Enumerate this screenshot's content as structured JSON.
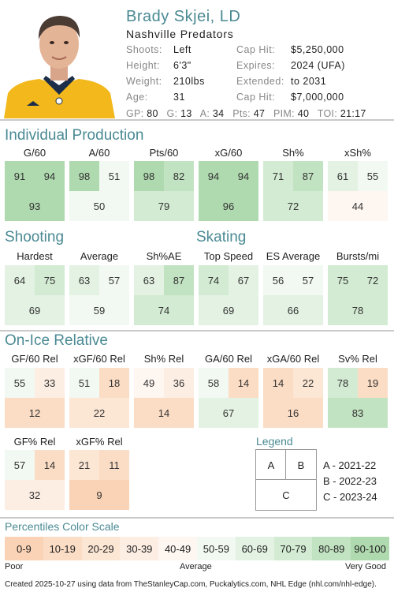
{
  "player": {
    "name": "Brady Skjei, LD",
    "team": "Nashville Predators",
    "shoots_label": "Shoots:",
    "shoots": "Left",
    "height_label": "Height:",
    "height": "6'3\"",
    "weight_label": "Weight:",
    "weight": "210lbs",
    "age_label": "Age:",
    "age": "31",
    "caphit_label": "Cap Hit:",
    "caphit": "$5,250,000",
    "expires_label": "Expires:",
    "expires": "2024 (UFA)",
    "extended_label": "Extended:",
    "extended": "to 2031",
    "caphit2_label": "Cap Hit:",
    "caphit2": "$7,000,000"
  },
  "statline": [
    {
      "k": "GP:",
      "v": "80"
    },
    {
      "k": "G:",
      "v": "13"
    },
    {
      "k": "A:",
      "v": "34"
    },
    {
      "k": "Pts:",
      "v": "47"
    },
    {
      "k": "PIM:",
      "v": "40"
    },
    {
      "k": "TOI:",
      "v": "21:17"
    }
  ],
  "sections": {
    "production": "Individual Production",
    "shooting": "Shooting",
    "skating": "Skating",
    "onice": "On-Ice Relative"
  },
  "metrics": {
    "production": [
      {
        "label": "G/60",
        "a": 91,
        "b": 94,
        "c": 93
      },
      {
        "label": "A/60",
        "a": 98,
        "b": 51,
        "c": 50
      },
      {
        "label": "Pts/60",
        "a": 98,
        "b": 82,
        "c": 79
      },
      {
        "label": "xG/60",
        "a": 94,
        "b": 94,
        "c": 96
      },
      {
        "label": "Sh%",
        "a": 71,
        "b": 87,
        "c": 72
      },
      {
        "label": "xSh%",
        "a": 61,
        "b": 55,
        "c": 44
      }
    ],
    "shooting": [
      {
        "label": "Hardest",
        "a": 64,
        "b": 75,
        "c": 69
      },
      {
        "label": "Average",
        "a": 63,
        "b": 57,
        "c": 59
      },
      {
        "label": "Sh%AE",
        "a": 63,
        "b": 87,
        "c": 74
      }
    ],
    "skating": [
      {
        "label": "Top Speed",
        "a": 74,
        "b": 67,
        "c": 69
      },
      {
        "label": "ES Average",
        "a": 56,
        "b": 57,
        "c": 66
      },
      {
        "label": "Bursts/mi",
        "a": 75,
        "b": 72,
        "c": 78
      }
    ],
    "onice1": [
      {
        "label": "GF/60 Rel",
        "a": 55,
        "b": 33,
        "c": 12
      },
      {
        "label": "xGF/60 Rel",
        "a": 51,
        "b": 18,
        "c": 22
      },
      {
        "label": "Sh% Rel",
        "a": 49,
        "b": 36,
        "c": 14
      },
      {
        "label": "GA/60 Rel",
        "a": 58,
        "b": 14,
        "c": 67
      },
      {
        "label": "xGA/60 Rel",
        "a": 14,
        "b": 22,
        "c": 16
      },
      {
        "label": "Sv% Rel",
        "a": 78,
        "b": 19,
        "c": 83
      }
    ],
    "onice2": [
      {
        "label": "GF% Rel",
        "a": 57,
        "b": 14,
        "c": 32
      },
      {
        "label": "xGF% Rel",
        "a": 21,
        "b": 11,
        "c": 9
      }
    ]
  },
  "legend": {
    "title": "Legend",
    "a": "A",
    "b": "B",
    "c": "C",
    "a_text": "A - 2021-22",
    "b_text": "B - 2022-23",
    "c_text": "C - 2023-24"
  },
  "scale": {
    "title": "Percentiles Color Scale",
    "bins": [
      "0-9",
      "10-19",
      "20-29",
      "30-39",
      "40-49",
      "50-59",
      "60-69",
      "70-79",
      "80-89",
      "90-100"
    ],
    "colors": [
      "#fad2b5",
      "#fbdcc4",
      "#fce6d4",
      "#fdeee3",
      "#fef6f1",
      "#f2f9f2",
      "#e3f2e3",
      "#d2ebd2",
      "#c2e3c2",
      "#afd9af"
    ],
    "poor": "Poor",
    "average": "Average",
    "good": "Very Good"
  },
  "footer": "Created 2025-10-27 using data from TheStanleyCap.com, Puckalytics.com, NHL Edge (nhl.com/nhl-edge)."
}
